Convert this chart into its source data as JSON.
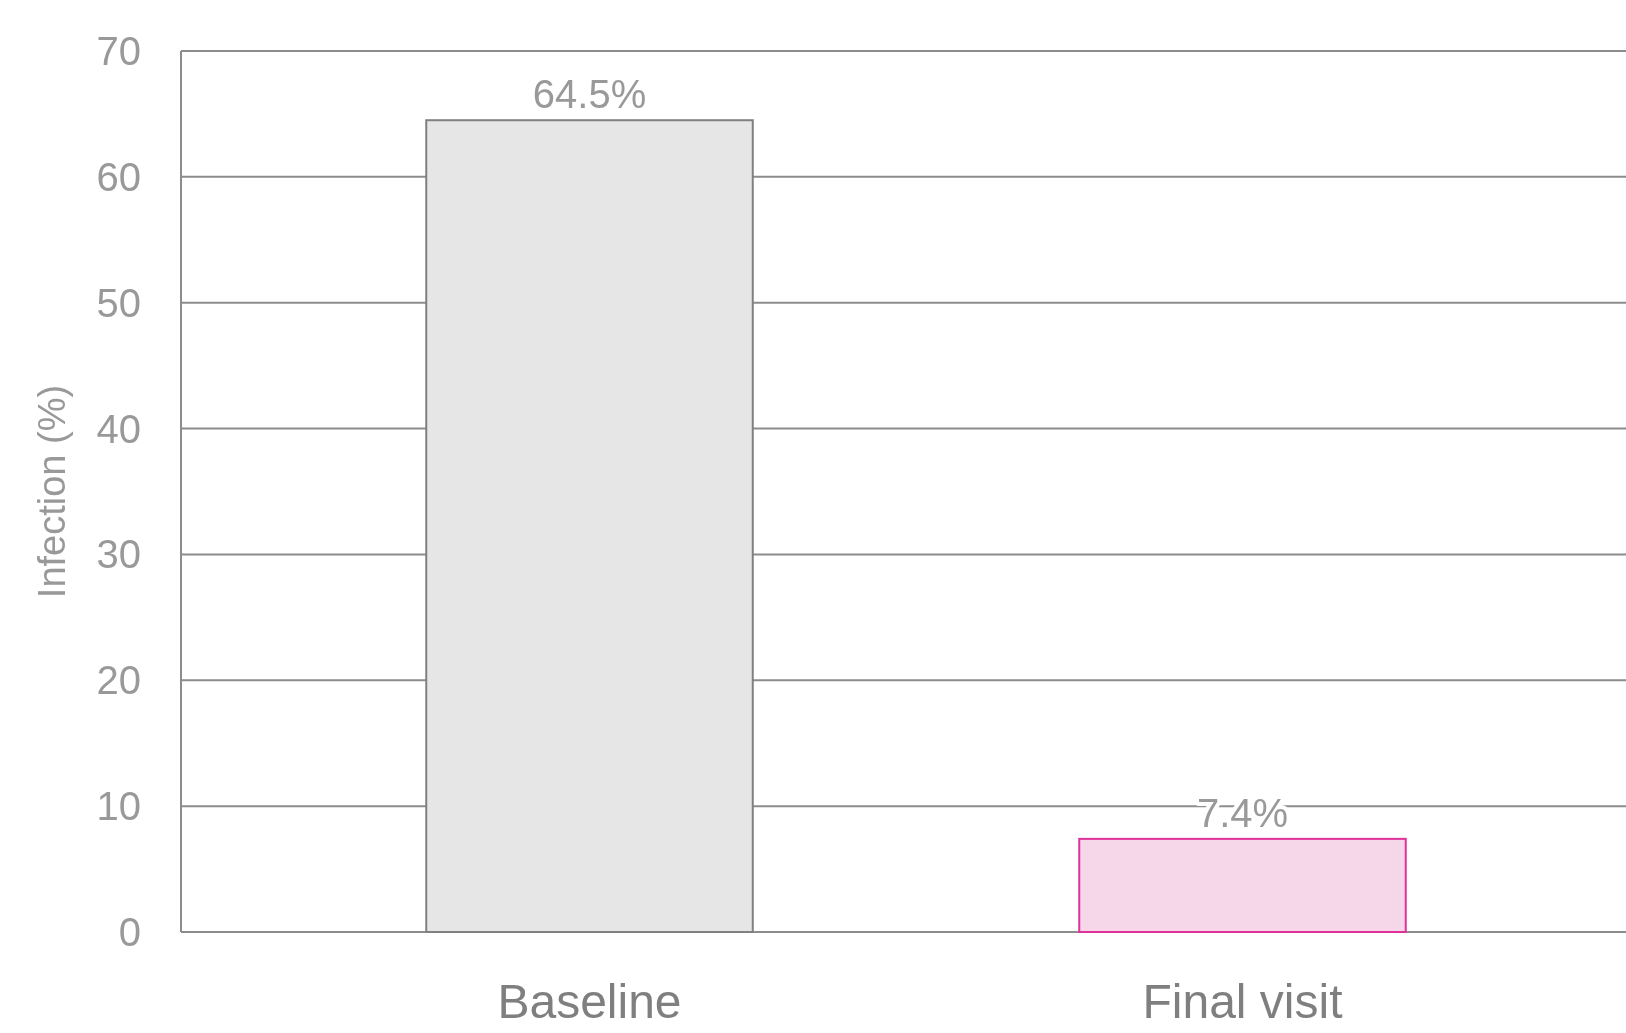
{
  "chart_data": {
    "type": "bar",
    "ylabel": "Infection (%)",
    "categories": [
      "Baseline",
      "Final visit"
    ],
    "values": [
      64.5,
      7.4
    ],
    "colors": [
      "#e6e6e6",
      "#f6d6e9"
    ],
    "value_labels": [
      "64.5%",
      "7.4%"
    ],
    "ylim": [
      0,
      70
    ],
    "yticks": [
      0,
      10,
      20,
      30,
      40,
      50,
      60,
      70
    ],
    "grid": "y"
  }
}
